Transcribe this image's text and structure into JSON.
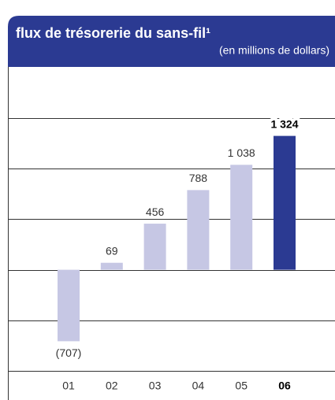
{
  "chart_data": {
    "type": "bar",
    "title": "flux de trésorerie du sans-fil¹",
    "subtitle": "(en millions de dollars)",
    "categories": [
      "01",
      "02",
      "03",
      "04",
      "05",
      "06"
    ],
    "values": [
      -707,
      69,
      456,
      788,
      1038,
      1324
    ],
    "value_labels": [
      "(707)",
      "69",
      "456",
      "788",
      "1 038",
      "1 324"
    ],
    "colors": [
      "#c6c7e4",
      "#c6c7e4",
      "#c6c7e4",
      "#c6c7e4",
      "#c6c7e4",
      "#2b3a92"
    ],
    "header_color": "#2b3a92",
    "ylim": [
      -1000,
      1500
    ],
    "yticks": [
      -1000,
      -500,
      0,
      500,
      1000,
      1500
    ],
    "grid": true
  }
}
